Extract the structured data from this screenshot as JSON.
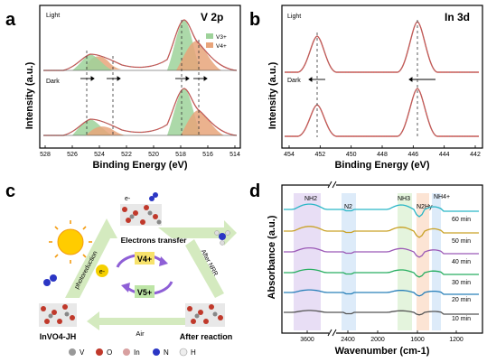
{
  "panels": {
    "a": {
      "letter": "a",
      "element_label": "V 2p",
      "light_label": "Light",
      "dark_label": "Dark",
      "xlabel": "Binding Energy (eV)",
      "ylabel": "Intensity (a.u.)",
      "legend": [
        "V3+",
        "V4+"
      ],
      "ticks": [
        "528",
        "526",
        "524",
        "522",
        "520",
        "518",
        "516",
        "514"
      ]
    },
    "b": {
      "letter": "b",
      "element_label": "In 3d",
      "light_label": "Light",
      "dark_label": "Dark",
      "xlabel": "Binding Energy (eV)",
      "ylabel": "Intensity (a.u.)",
      "ticks": [
        "454",
        "452",
        "450",
        "448",
        "446",
        "444",
        "442"
      ]
    },
    "c": {
      "letter": "c",
      "electron_label": "e-",
      "electrons_transfer": "Electrons transfer",
      "after_nrr": "After NRR",
      "after_reaction": "After reaction",
      "air": "Air",
      "photoreduction": "photoreduction",
      "material": "InVO4-JH",
      "v4": "V4+",
      "v5": "V5+",
      "e_circle": "e-",
      "legend": [
        "V",
        "O",
        "In",
        "N",
        "H"
      ]
    },
    "d": {
      "letter": "d",
      "xlabel": "Wavenumber (cm-1)",
      "ylabel": "Absorbance (a.u.)",
      "ticks": [
        "3600",
        "2400",
        "2000",
        "1600",
        "1200"
      ],
      "band_labels": [
        "NH2",
        "N2",
        "NH3",
        "N2Hy",
        "NH4+"
      ],
      "time_labels": [
        "60 min",
        "50 min",
        "40 min",
        "30 min",
        "20 min",
        "10 min"
      ]
    }
  },
  "colors": {
    "v3_fill": "#9ed29a",
    "v4_fill": "#e8a47a",
    "fit_line": "#d9534f",
    "ftir_series": [
      "#29b6c6",
      "#c9a227",
      "#9b59b6",
      "#27ae60",
      "#2980b9",
      "#555555"
    ]
  }
}
